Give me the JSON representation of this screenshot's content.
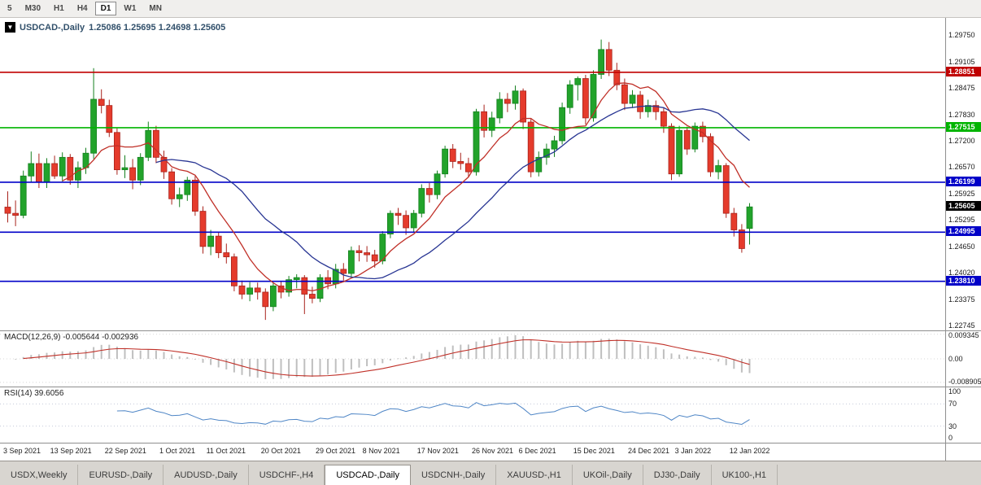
{
  "toolbar": {
    "timeframes": [
      {
        "label": "5",
        "active": false
      },
      {
        "label": "M30",
        "active": false
      },
      {
        "label": "H1",
        "active": false
      },
      {
        "label": "H4",
        "active": false
      },
      {
        "label": "D1",
        "active": true
      },
      {
        "label": "W1",
        "active": false
      },
      {
        "label": "MN",
        "active": false
      }
    ]
  },
  "header": {
    "collapse_icon": "▼",
    "symbol": "USDCAD-,Daily",
    "ohlc": "1.25086 1.25695 1.24698 1.25605"
  },
  "indicators": {
    "macd_label": "MACD(12,26,9)",
    "macd_values": "-0.005644 -0.002936",
    "rsi_label": "RSI(14)",
    "rsi_value": "39.6056"
  },
  "chart_data": {
    "type": "candlestick",
    "symbol": "USDCAD",
    "timeframe": "Daily",
    "ylim": [
      1.22627,
      1.30162
    ],
    "y_ticks": [
      "1.29750",
      "1.29105",
      "1.28475",
      "1.27830",
      "1.27200",
      "1.26570",
      "1.25925",
      "1.25295",
      "1.24650",
      "1.24020",
      "1.23375",
      "1.22745"
    ],
    "hlines": [
      {
        "label": "1.28851",
        "price": 1.28851,
        "color": "#c00000"
      },
      {
        "label": "1.27515",
        "price": 1.27515,
        "color": "#00b400"
      },
      {
        "label": "1.26199",
        "price": 1.26199,
        "color": "#0000c8"
      },
      {
        "label": "1.24995",
        "price": 1.24995,
        "color": "#0000c8"
      },
      {
        "label": "1.23810",
        "price": 1.2381,
        "color": "#0000c8"
      }
    ],
    "current_price": {
      "label": "1.25605",
      "price": 1.25605,
      "color": "#000000"
    },
    "ma_overlays": [
      {
        "period": 8,
        "color": "#c03028"
      },
      {
        "period": 20,
        "color": "#283593"
      }
    ],
    "colors": {
      "bull": "#22a32b",
      "bull_border": "#15801f",
      "bear": "#e53b2c",
      "bear_border": "#a8231c"
    },
    "candles": [
      [
        1.256,
        1.2598,
        1.2523,
        1.2545
      ],
      [
        1.2545,
        1.2576,
        1.2514,
        1.254
      ],
      [
        1.254,
        1.2648,
        1.2533,
        1.2635
      ],
      [
        1.2635,
        1.2694,
        1.262,
        1.2665
      ],
      [
        1.2665,
        1.2689,
        1.2606,
        1.262
      ],
      [
        1.262,
        1.2678,
        1.2606,
        1.2665
      ],
      [
        1.2665,
        1.2684,
        1.2628,
        1.2635
      ],
      [
        1.2635,
        1.2692,
        1.2622,
        1.268
      ],
      [
        1.268,
        1.2688,
        1.2614,
        1.2625
      ],
      [
        1.2625,
        1.267,
        1.2606,
        1.2655
      ],
      [
        1.2655,
        1.2703,
        1.264,
        1.269
      ],
      [
        1.269,
        1.2895,
        1.2676,
        1.282
      ],
      [
        1.282,
        1.2844,
        1.2786,
        1.2805
      ],
      [
        1.2805,
        1.2819,
        1.2729,
        1.274
      ],
      [
        1.274,
        1.275,
        1.2638,
        1.265
      ],
      [
        1.265,
        1.2685,
        1.263,
        1.2655
      ],
      [
        1.2655,
        1.2676,
        1.2603,
        1.2625
      ],
      [
        1.2625,
        1.269,
        1.2613,
        1.268
      ],
      [
        1.268,
        1.2766,
        1.2671,
        1.2745
      ],
      [
        1.2745,
        1.2756,
        1.2666,
        1.268
      ],
      [
        1.268,
        1.2696,
        1.2628,
        1.2645
      ],
      [
        1.2645,
        1.2654,
        1.2566,
        1.258
      ],
      [
        1.258,
        1.2607,
        1.256,
        1.259
      ],
      [
        1.259,
        1.2633,
        1.2575,
        1.2625
      ],
      [
        1.2625,
        1.2635,
        1.2539,
        1.255
      ],
      [
        1.255,
        1.2562,
        1.2448,
        1.2465
      ],
      [
        1.2465,
        1.2505,
        1.2444,
        1.249
      ],
      [
        1.249,
        1.25,
        1.2437,
        1.245
      ],
      [
        1.245,
        1.2472,
        1.2424,
        1.244
      ],
      [
        1.244,
        1.2448,
        1.2357,
        1.237
      ],
      [
        1.237,
        1.2383,
        1.2338,
        1.235
      ],
      [
        1.235,
        1.2379,
        1.2333,
        1.2365
      ],
      [
        1.2365,
        1.2378,
        1.2337,
        1.2355
      ],
      [
        1.2355,
        1.2364,
        1.2288,
        1.232
      ],
      [
        1.232,
        1.2378,
        1.2309,
        1.237
      ],
      [
        1.237,
        1.2382,
        1.234,
        1.2355
      ],
      [
        1.2355,
        1.2394,
        1.2344,
        1.2385
      ],
      [
        1.2385,
        1.2398,
        1.2364,
        1.239
      ],
      [
        1.239,
        1.2396,
        1.2302,
        1.235
      ],
      [
        1.235,
        1.2368,
        1.2328,
        1.234
      ],
      [
        1.234,
        1.2398,
        1.2331,
        1.239
      ],
      [
        1.239,
        1.2408,
        1.2362,
        1.2375
      ],
      [
        1.2375,
        1.2423,
        1.2364,
        1.241
      ],
      [
        1.241,
        1.2425,
        1.2383,
        1.24
      ],
      [
        1.24,
        1.2465,
        1.239,
        1.2455
      ],
      [
        1.2455,
        1.2468,
        1.2429,
        1.245
      ],
      [
        1.245,
        1.2466,
        1.2428,
        1.2445
      ],
      [
        1.2445,
        1.2457,
        1.2414,
        1.243
      ],
      [
        1.243,
        1.2502,
        1.2422,
        1.2495
      ],
      [
        1.2495,
        1.2552,
        1.2485,
        1.2545
      ],
      [
        1.2545,
        1.2558,
        1.2517,
        1.254
      ],
      [
        1.254,
        1.2552,
        1.2493,
        1.251
      ],
      [
        1.251,
        1.2553,
        1.2498,
        1.2545
      ],
      [
        1.2545,
        1.2615,
        1.2535,
        1.2605
      ],
      [
        1.2605,
        1.2618,
        1.2571,
        1.259
      ],
      [
        1.259,
        1.2648,
        1.2579,
        1.264
      ],
      [
        1.264,
        1.2708,
        1.2631,
        1.27
      ],
      [
        1.27,
        1.2712,
        1.2654,
        1.267
      ],
      [
        1.267,
        1.2691,
        1.265,
        1.2665
      ],
      [
        1.2665,
        1.2679,
        1.2632,
        1.2645
      ],
      [
        1.2645,
        1.2797,
        1.2636,
        1.279
      ],
      [
        1.279,
        1.2807,
        1.2728,
        1.2745
      ],
      [
        1.2745,
        1.279,
        1.2729,
        1.2775
      ],
      [
        1.2775,
        1.2837,
        1.2762,
        1.282
      ],
      [
        1.282,
        1.2835,
        1.2789,
        1.281
      ],
      [
        1.281,
        1.2853,
        1.2795,
        1.284
      ],
      [
        1.284,
        1.2846,
        1.2748,
        1.2765
      ],
      [
        1.2765,
        1.2772,
        1.2632,
        1.2645
      ],
      [
        1.2645,
        1.2694,
        1.2634,
        1.268
      ],
      [
        1.268,
        1.2713,
        1.2662,
        1.27
      ],
      [
        1.27,
        1.2732,
        1.2681,
        1.272
      ],
      [
        1.272,
        1.2812,
        1.2711,
        1.28
      ],
      [
        1.28,
        1.2866,
        1.2785,
        1.2855
      ],
      [
        1.2855,
        1.2875,
        1.2817,
        1.287
      ],
      [
        1.287,
        1.2879,
        1.2759,
        1.2775
      ],
      [
        1.2775,
        1.289,
        1.2766,
        1.288
      ],
      [
        1.288,
        1.2964,
        1.2869,
        1.294
      ],
      [
        1.294,
        1.2958,
        1.2876,
        1.289
      ],
      [
        1.289,
        1.2908,
        1.2842,
        1.2855
      ],
      [
        1.2855,
        1.287,
        1.2794,
        1.281
      ],
      [
        1.281,
        1.2842,
        1.2799,
        1.283
      ],
      [
        1.283,
        1.284,
        1.2773,
        1.279
      ],
      [
        1.279,
        1.2819,
        1.2776,
        1.2805
      ],
      [
        1.2805,
        1.2817,
        1.277,
        1.279
      ],
      [
        1.279,
        1.2799,
        1.2739,
        1.2755
      ],
      [
        1.2755,
        1.2762,
        1.2625,
        1.264
      ],
      [
        1.264,
        1.2756,
        1.2633,
        1.2745
      ],
      [
        1.2745,
        1.2754,
        1.2686,
        1.27
      ],
      [
        1.27,
        1.2764,
        1.2692,
        1.2755
      ],
      [
        1.2755,
        1.2766,
        1.2716,
        1.273
      ],
      [
        1.273,
        1.2738,
        1.2633,
        1.2645
      ],
      [
        1.2645,
        1.2674,
        1.2627,
        1.266
      ],
      [
        1.266,
        1.2666,
        1.2534,
        1.2545
      ],
      [
        1.2545,
        1.2558,
        1.2489,
        1.2505
      ],
      [
        1.2505,
        1.2519,
        1.245,
        1.246
      ],
      [
        1.25086,
        1.25695,
        1.24698,
        1.25605
      ]
    ],
    "date_labels": [
      [
        0,
        "3 Sep 2021"
      ],
      [
        6,
        "13 Sep 2021"
      ],
      [
        13,
        "22 Sep 2021"
      ],
      [
        20,
        "1 Oct 2021"
      ],
      [
        26,
        "11 Oct 2021"
      ],
      [
        33,
        "20 Oct 2021"
      ],
      [
        40,
        "29 Oct 2021"
      ],
      [
        46,
        "8 Nov 2021"
      ],
      [
        53,
        "17 Nov 2021"
      ],
      [
        60,
        "26 Nov 2021"
      ],
      [
        66,
        "6 Dec 2021"
      ],
      [
        73,
        "15 Dec 2021"
      ],
      [
        80,
        "24 Dec 2021"
      ],
      [
        86,
        "3 Jan 2022"
      ],
      [
        93,
        "12 Jan 2022"
      ]
    ],
    "macd": {
      "fast": 12,
      "slow": 26,
      "signal": 9,
      "ylim": [
        -0.0105,
        0.0105
      ],
      "ticks": [
        {
          "label": "0.009345",
          "value": 0.009345
        },
        {
          "label": "0.00",
          "value": 0
        },
        {
          "label": "-0.008905",
          "value": -0.008905
        }
      ],
      "hist_color": "#bfbfbf",
      "signal_color": "#c03028"
    },
    "rsi": {
      "period": 14,
      "ticks": [
        {
          "label": "100",
          "value": 100
        },
        {
          "label": "70",
          "value": 70
        },
        {
          "label": "30",
          "value": 30
        },
        {
          "label": "0",
          "value": 0
        }
      ],
      "levels": [
        70,
        30
      ],
      "line_color": "#4f86c6"
    }
  },
  "tabs": [
    {
      "label": "USDX,Weekly",
      "active": false
    },
    {
      "label": "EURUSD-,Daily",
      "active": false
    },
    {
      "label": "AUDUSD-,Daily",
      "active": false
    },
    {
      "label": "USDCHF-,H4",
      "active": false
    },
    {
      "label": "USDCAD-,Daily",
      "active": true
    },
    {
      "label": "USDCNH-,Daily",
      "active": false
    },
    {
      "label": "XAUUSD-,H1",
      "active": false
    },
    {
      "label": "UKOil-,Daily",
      "active": false
    },
    {
      "label": "DJ30-,Daily",
      "active": false
    },
    {
      "label": "UK100-,H1",
      "active": false
    }
  ]
}
